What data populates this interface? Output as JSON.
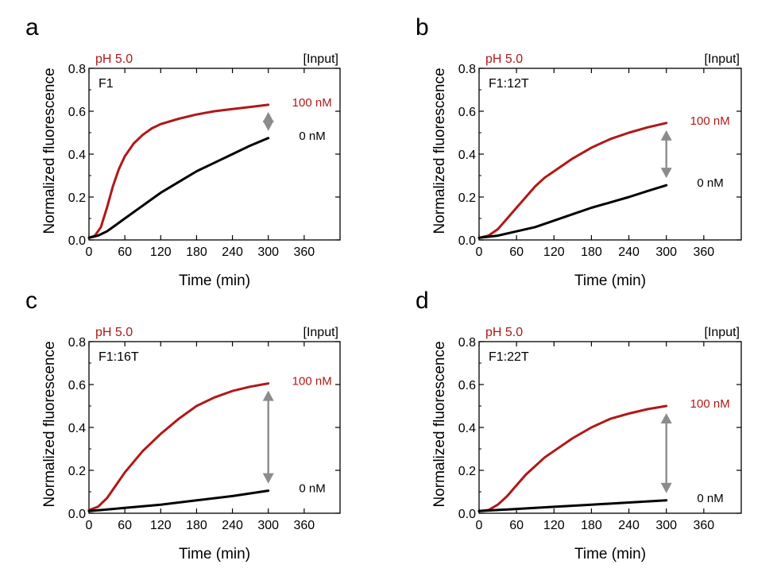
{
  "figure": {
    "colors": {
      "input": "#b01818",
      "none": "#000000",
      "arrow": "#8c8c8c",
      "axis": "#000000"
    }
  },
  "chart_data": [
    {
      "type": "line",
      "panel_label": "a",
      "condition": "pH 5.0",
      "legend_title": "[Input]",
      "construct": "F1",
      "xlabel": "Time (min)",
      "ylabel": "Normalized fluorescence",
      "xlim": [
        0,
        420
      ],
      "ylim": [
        0,
        0.8
      ],
      "xticks": [
        "0",
        "60",
        "120",
        "180",
        "240",
        "300",
        "360"
      ],
      "yticks": [
        "0.0",
        "0.2",
        "0.4",
        "0.6",
        "0.8"
      ],
      "grid": false,
      "series": [
        {
          "name": "100 nM",
          "color": "#b01818",
          "x": [
            0,
            10,
            20,
            30,
            40,
            50,
            60,
            75,
            90,
            105,
            120,
            150,
            180,
            210,
            240,
            270,
            300
          ],
          "y": [
            0.01,
            0.02,
            0.06,
            0.15,
            0.25,
            0.33,
            0.39,
            0.45,
            0.49,
            0.52,
            0.54,
            0.565,
            0.585,
            0.6,
            0.61,
            0.62,
            0.63
          ]
        },
        {
          "name": "0 nM",
          "color": "#000000",
          "x": [
            0,
            15,
            30,
            45,
            60,
            90,
            120,
            150,
            180,
            210,
            240,
            270,
            300
          ],
          "y": [
            0.01,
            0.02,
            0.04,
            0.07,
            0.1,
            0.16,
            0.22,
            0.27,
            0.32,
            0.36,
            0.4,
            0.44,
            0.475
          ]
        }
      ]
    },
    {
      "type": "line",
      "panel_label": "b",
      "condition": "pH 5.0",
      "legend_title": "[Input]",
      "construct": "F1:12T",
      "xlabel": "Time (min)",
      "ylabel": "Normalized fluorescence",
      "xlim": [
        0,
        420
      ],
      "ylim": [
        0,
        0.8
      ],
      "xticks": [
        "0",
        "60",
        "120",
        "180",
        "240",
        "300",
        "360"
      ],
      "yticks": [
        "0.0",
        "0.2",
        "0.4",
        "0.6",
        "0.8"
      ],
      "grid": false,
      "series": [
        {
          "name": "100 nM",
          "color": "#b01818",
          "x": [
            0,
            15,
            30,
            45,
            60,
            75,
            90,
            105,
            120,
            150,
            180,
            210,
            240,
            270,
            300
          ],
          "y": [
            0.01,
            0.02,
            0.05,
            0.1,
            0.15,
            0.2,
            0.25,
            0.29,
            0.32,
            0.38,
            0.43,
            0.47,
            0.5,
            0.525,
            0.545
          ]
        },
        {
          "name": "0 nM",
          "color": "#000000",
          "x": [
            0,
            30,
            60,
            90,
            120,
            150,
            180,
            210,
            240,
            270,
            300
          ],
          "y": [
            0.01,
            0.02,
            0.04,
            0.06,
            0.09,
            0.12,
            0.15,
            0.175,
            0.2,
            0.228,
            0.255
          ]
        }
      ]
    },
    {
      "type": "line",
      "panel_label": "c",
      "condition": "pH 5.0",
      "legend_title": "[Input]",
      "construct": "F1:16T",
      "xlabel": "Time (min)",
      "ylabel": "Normalized fluorescence",
      "xlim": [
        0,
        420
      ],
      "ylim": [
        0,
        0.8
      ],
      "xticks": [
        "0",
        "60",
        "120",
        "180",
        "240",
        "300",
        "360"
      ],
      "yticks": [
        "0.0",
        "0.2",
        "0.4",
        "0.6",
        "0.8"
      ],
      "grid": false,
      "series": [
        {
          "name": "100 nM",
          "color": "#b01818",
          "x": [
            0,
            15,
            30,
            45,
            60,
            75,
            90,
            105,
            120,
            150,
            180,
            210,
            240,
            270,
            300
          ],
          "y": [
            0.015,
            0.03,
            0.07,
            0.13,
            0.19,
            0.24,
            0.29,
            0.33,
            0.37,
            0.44,
            0.5,
            0.54,
            0.57,
            0.59,
            0.605
          ]
        },
        {
          "name": "0 nM",
          "color": "#000000",
          "x": [
            0,
            60,
            120,
            180,
            240,
            300
          ],
          "y": [
            0.01,
            0.025,
            0.04,
            0.06,
            0.08,
            0.105
          ]
        }
      ]
    },
    {
      "type": "line",
      "panel_label": "d",
      "condition": "pH 5.0",
      "legend_title": "[Input]",
      "construct": "F1:22T",
      "xlabel": "Time (min)",
      "ylabel": "Normalized fluorescence",
      "xlim": [
        0,
        420
      ],
      "ylim": [
        0,
        0.8
      ],
      "xticks": [
        "0",
        "60",
        "120",
        "180",
        "240",
        "300",
        "360"
      ],
      "yticks": [
        "0.0",
        "0.2",
        "0.4",
        "0.6",
        "0.8"
      ],
      "grid": false,
      "series": [
        {
          "name": "100 nM",
          "color": "#b01818",
          "x": [
            0,
            15,
            30,
            45,
            60,
            75,
            90,
            105,
            120,
            150,
            180,
            210,
            240,
            270,
            300
          ],
          "y": [
            0.01,
            0.015,
            0.04,
            0.08,
            0.13,
            0.18,
            0.22,
            0.26,
            0.29,
            0.35,
            0.4,
            0.44,
            0.465,
            0.485,
            0.5
          ]
        },
        {
          "name": "0 nM",
          "color": "#000000",
          "x": [
            0,
            60,
            120,
            180,
            240,
            300
          ],
          "y": [
            0.01,
            0.02,
            0.03,
            0.04,
            0.05,
            0.06
          ]
        }
      ]
    }
  ]
}
